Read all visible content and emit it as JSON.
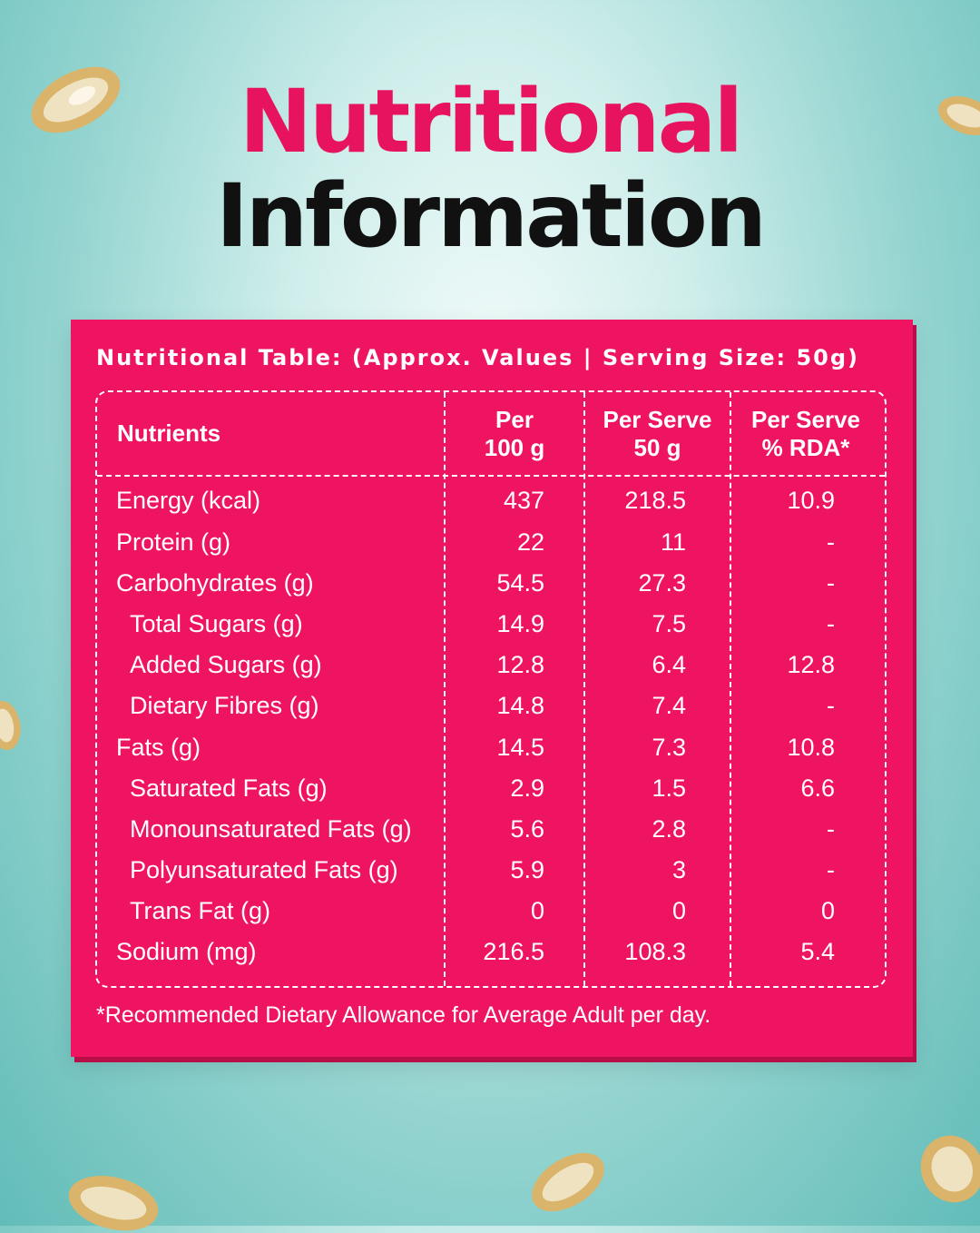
{
  "title": {
    "line1": "Nutritional",
    "line2": "Information"
  },
  "table": {
    "caption": "Nutritional Table: (Approx. Values | Serving Size: 50g)",
    "headers": {
      "nutrients": "Nutrients",
      "per100_l1": "Per",
      "per100_l2": "100 g",
      "perserve_l1": "Per Serve",
      "perserve_l2": "50 g",
      "rda_l1": "Per Serve",
      "rda_l2": "% RDA*"
    },
    "rows": [
      {
        "name": "Energy (kcal)",
        "per100": "437",
        "perserve": "218.5",
        "rda": "10.9"
      },
      {
        "name": "Protein (g)",
        "per100": "22",
        "perserve": "11",
        "rda": "-"
      },
      {
        "name": "Carbohydrates (g)",
        "per100": "54.5",
        "perserve": "27.3",
        "rda": "-"
      },
      {
        "name": "Total Sugars (g)",
        "per100": "14.9",
        "perserve": "7.5",
        "rda": "-"
      },
      {
        "name": "Added Sugars (g)",
        "per100": "12.8",
        "perserve": "6.4",
        "rda": "12.8"
      },
      {
        "name": "Dietary Fibres (g)",
        "per100": "14.8",
        "perserve": "7.4",
        "rda": "-"
      },
      {
        "name": "Fats (g)",
        "per100": "14.5",
        "perserve": "7.3",
        "rda": "10.8"
      },
      {
        "name": "Saturated Fats (g)",
        "per100": "2.9",
        "perserve": "1.5",
        "rda": "6.6"
      },
      {
        "name": "Monounsaturated Fats (g)",
        "per100": "5.6",
        "perserve": "2.8",
        "rda": "-"
      },
      {
        "name": "Polyunsaturated Fats (g)",
        "per100": "5.9",
        "perserve": "3",
        "rda": "-"
      },
      {
        "name": "Trans Fat (g)",
        "per100": "0",
        "perserve": "0",
        "rda": "0"
      },
      {
        "name": "Sodium (mg)",
        "per100": "216.5",
        "perserve": "108.3",
        "rda": "5.4"
      }
    ],
    "footnote": "*Recommended Dietary Allowance for Average Adult per day."
  },
  "colors": {
    "accent": "#ee1461",
    "title_pink": "#e8135f",
    "title_dark": "#111111",
    "background": "#a6dcd8",
    "text_on_card": "#ffffff"
  },
  "decor": [
    "oat-flake-icon",
    "oat-flake-icon",
    "oat-flake-icon",
    "oat-flake-icon",
    "oat-flake-icon",
    "oat-flake-icon"
  ]
}
